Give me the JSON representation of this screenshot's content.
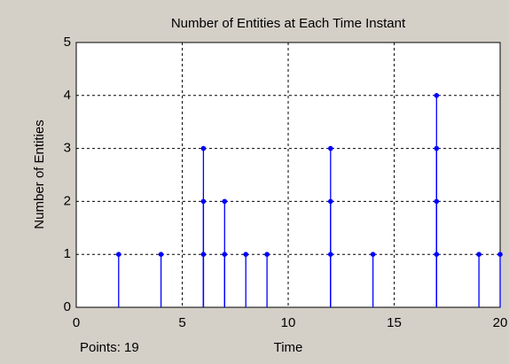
{
  "chart_data": {
    "type": "stem",
    "title": "Number of Entities at Each Time Instant",
    "xlabel": "Time",
    "ylabel": "Number of Entities",
    "annotation": "Points: 19",
    "x": [
      2,
      4,
      6,
      6,
      6,
      7,
      7,
      8,
      9,
      12,
      12,
      12,
      14,
      17,
      17,
      17,
      17,
      19,
      20
    ],
    "values": [
      1,
      1,
      1,
      2,
      3,
      1,
      2,
      1,
      1,
      1,
      2,
      3,
      1,
      1,
      2,
      3,
      4,
      1,
      1
    ],
    "color": "#0000ff",
    "xlim": [
      0,
      20
    ],
    "xticks": [
      0,
      5,
      10,
      15,
      20
    ],
    "ylim": [
      0,
      5
    ],
    "yticks": [
      0,
      1,
      2,
      3,
      4,
      5
    ],
    "grid": true
  }
}
